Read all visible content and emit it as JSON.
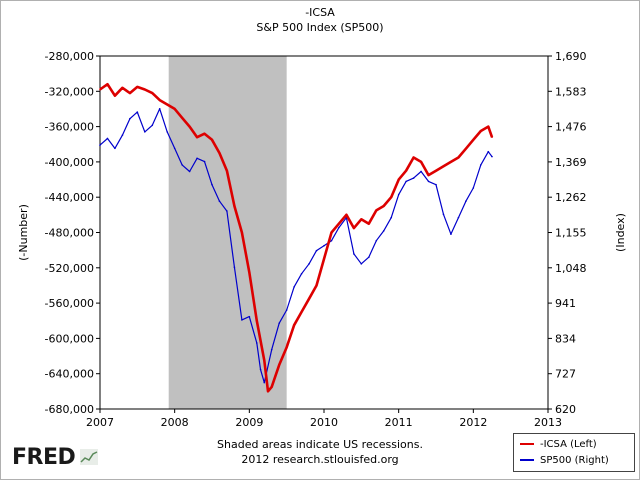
{
  "chart_data": {
    "type": "line",
    "title": "-ICSA",
    "subtitle": "S&P 500 Index (SP500)",
    "x_ticks": [
      "2007",
      "2008",
      "2009",
      "2010",
      "2011",
      "2012",
      "2013"
    ],
    "xlim": [
      2007,
      2013
    ],
    "left_axis": {
      "label": "(-Number)",
      "ylim": [
        -680000,
        -280000
      ],
      "tick_values": [
        -280000,
        -320000,
        -360000,
        -400000,
        -440000,
        -480000,
        -520000,
        -560000,
        -600000,
        -640000,
        -680000
      ],
      "tick_labels": [
        "-280,000",
        "-320,000",
        "-360,000",
        "-400,000",
        "-440,000",
        "-480,000",
        "-520,000",
        "-560,000",
        "-600,000",
        "-640,000",
        "-680,000"
      ]
    },
    "right_axis": {
      "label": "(Index)",
      "ylim": [
        620,
        1690
      ],
      "tick_values": [
        1690,
        1583,
        1476,
        1369,
        1262,
        1155,
        1048,
        941,
        834,
        727,
        620
      ],
      "tick_labels": [
        "1,690",
        "1,583",
        "1,476",
        "1,369",
        "1,262",
        "1,155",
        "1,048",
        "941",
        "834",
        "727",
        "620"
      ]
    },
    "recession": {
      "start": 2007.92,
      "end": 2009.5
    },
    "series": [
      {
        "name": "-ICSA (Left)",
        "axis": "left",
        "color": "#dd0000",
        "x": [
          2007.0,
          2007.1,
          2007.2,
          2007.3,
          2007.4,
          2007.5,
          2007.6,
          2007.7,
          2007.8,
          2007.9,
          2008.0,
          2008.1,
          2008.2,
          2008.3,
          2008.4,
          2008.5,
          2008.6,
          2008.7,
          2008.8,
          2008.9,
          2009.0,
          2009.1,
          2009.2,
          2009.25,
          2009.3,
          2009.4,
          2009.5,
          2009.6,
          2009.7,
          2009.8,
          2009.9,
          2010.0,
          2010.1,
          2010.2,
          2010.3,
          2010.4,
          2010.5,
          2010.6,
          2010.7,
          2010.8,
          2010.9,
          2011.0,
          2011.1,
          2011.2,
          2011.3,
          2011.4,
          2011.5,
          2011.6,
          2011.7,
          2011.8,
          2011.9,
          2012.0,
          2012.1,
          2012.2,
          2012.25
        ],
        "y": [
          -318000,
          -312000,
          -325000,
          -316000,
          -322000,
          -315000,
          -318000,
          -322000,
          -330000,
          -335000,
          -340000,
          -350000,
          -360000,
          -372000,
          -368000,
          -375000,
          -390000,
          -410000,
          -450000,
          -480000,
          -525000,
          -580000,
          -625000,
          -660000,
          -655000,
          -630000,
          -610000,
          -585000,
          -570000,
          -555000,
          -540000,
          -510000,
          -480000,
          -470000,
          -460000,
          -475000,
          -465000,
          -470000,
          -455000,
          -450000,
          -440000,
          -420000,
          -410000,
          -395000,
          -400000,
          -415000,
          -410000,
          -405000,
          -400000,
          -395000,
          -385000,
          -375000,
          -365000,
          -360000,
          -372000
        ]
      },
      {
        "name": "SP500 (Right)",
        "axis": "right",
        "color": "#0000cc",
        "x": [
          2007.0,
          2007.1,
          2007.2,
          2007.3,
          2007.4,
          2007.5,
          2007.6,
          2007.7,
          2007.8,
          2007.9,
          2008.0,
          2008.1,
          2008.2,
          2008.3,
          2008.4,
          2008.5,
          2008.6,
          2008.7,
          2008.8,
          2008.9,
          2009.0,
          2009.1,
          2009.15,
          2009.2,
          2009.3,
          2009.4,
          2009.5,
          2009.6,
          2009.7,
          2009.8,
          2009.9,
          2010.0,
          2010.1,
          2010.2,
          2010.3,
          2010.4,
          2010.5,
          2010.6,
          2010.7,
          2010.8,
          2010.9,
          2011.0,
          2011.1,
          2011.2,
          2011.3,
          2011.4,
          2011.5,
          2011.6,
          2011.7,
          2011.8,
          2011.9,
          2012.0,
          2012.1,
          2012.2,
          2012.25
        ],
        "y": [
          1420,
          1440,
          1410,
          1450,
          1500,
          1520,
          1460,
          1480,
          1530,
          1460,
          1410,
          1360,
          1340,
          1380,
          1370,
          1300,
          1250,
          1220,
          1050,
          890,
          900,
          820,
          740,
          700,
          800,
          880,
          920,
          990,
          1030,
          1060,
          1100,
          1115,
          1130,
          1170,
          1200,
          1090,
          1060,
          1080,
          1130,
          1160,
          1200,
          1270,
          1310,
          1320,
          1340,
          1310,
          1300,
          1210,
          1150,
          1200,
          1250,
          1290,
          1360,
          1400,
          1385
        ]
      }
    ]
  },
  "legend": {
    "items": [
      {
        "label": "-ICSA (Left)",
        "color": "#dd0000"
      },
      {
        "label": "SP500 (Right)",
        "color": "#0000cc"
      }
    ]
  },
  "footer": {
    "note": "Shaded areas indicate US recessions.",
    "source": "2012 research.stlouisfed.org"
  },
  "brand": {
    "logo": "FRED"
  }
}
